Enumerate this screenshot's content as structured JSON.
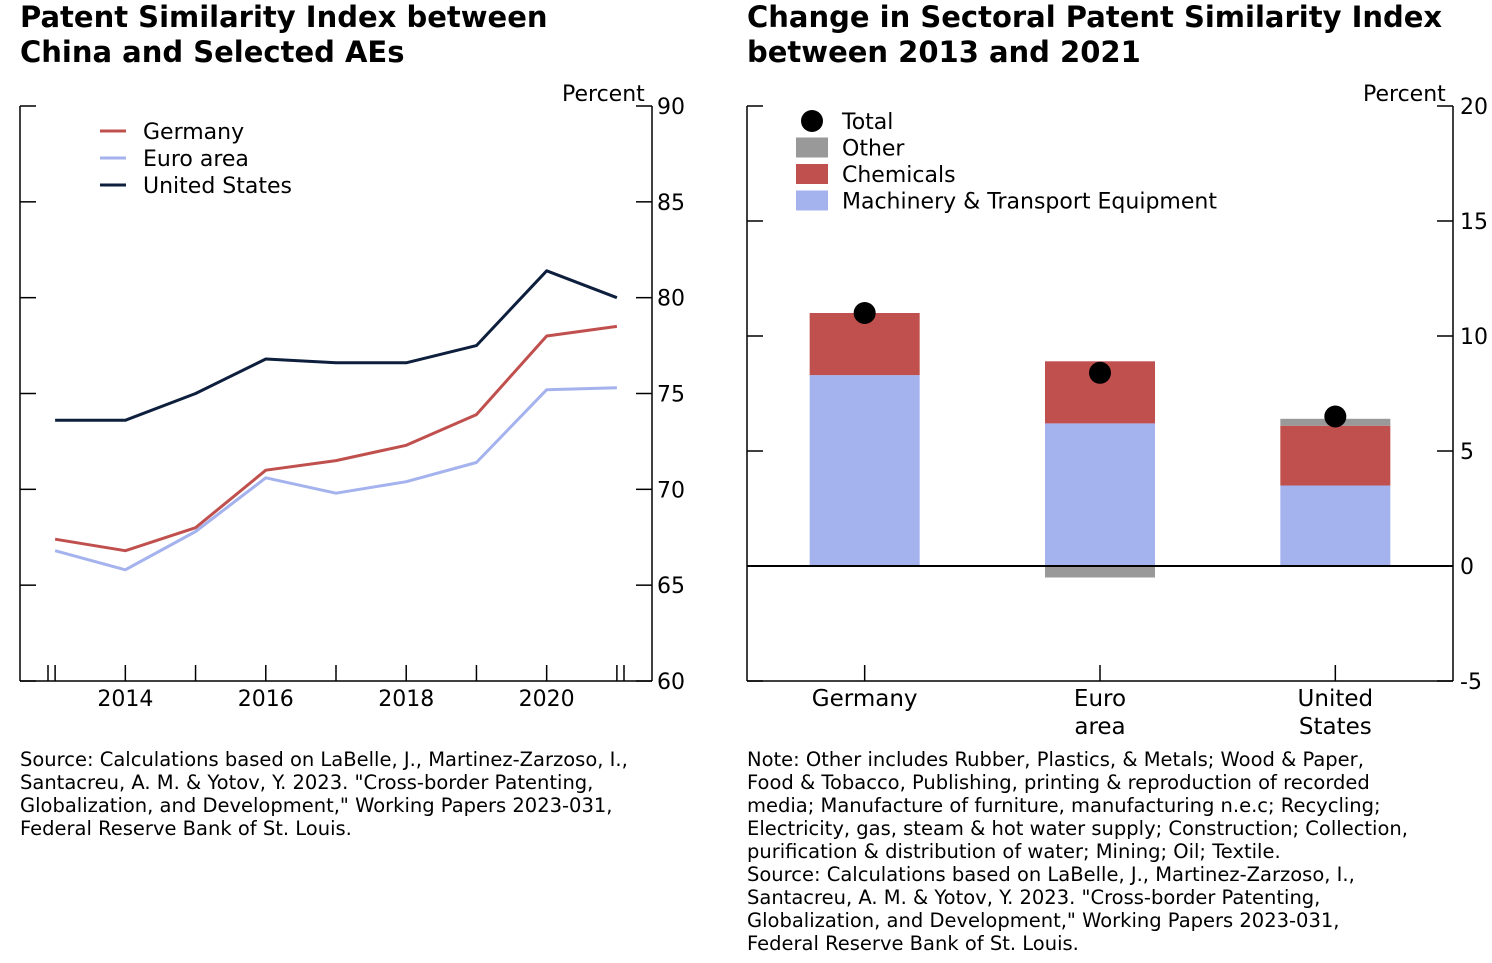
{
  "left": {
    "title": "Patent Similarity Index between\nChina and Selected AEs",
    "note": "  Source: Calculations based on LaBelle, J., Martinez-Zarzoso, I.,\nSantacreu, A. M. & Yotov, Y. 2023. \"Cross-border Patenting,\nGlobalization, and Development,\" Working Papers 2023-031,\nFederal Reserve Bank of St. Louis."
  },
  "right": {
    "title": "Change in Sectoral Patent Similarity Index\nbetween 2013 and 2021",
    "note": "  Note: Other includes Rubber, Plastics, & Metals; Wood & Paper,\nFood & Tobacco, Publishing, printing & reproduction of recorded\nmedia; Manufacture of furniture, manufacturing n.e.c;  Recycling;\nElectricity, gas, steam & hot water supply; Construction;  Collection,\npurification & distribution of water; Mining; Oil; Textile.\n  Source: Calculations based on LaBelle, J., Martinez-Zarzoso, I.,\nSantacreu, A. M. & Yotov, Y. 2023. \"Cross-border Patenting,\nGlobalization, and Development,\" Working Papers 2023-031,\nFederal Reserve Bank of St. Louis."
  },
  "chart_data": [
    {
      "type": "line",
      "title": "Patent Similarity Index between China and Selected AEs",
      "ylabel": "Percent",
      "ylim": [
        60,
        90
      ],
      "yticks": [
        60,
        65,
        70,
        75,
        80,
        85,
        90
      ],
      "x": [
        2013,
        2014,
        2015,
        2016,
        2017,
        2018,
        2019,
        2020,
        2021
      ],
      "xtick_labels": [
        "2014",
        "2016",
        "2018",
        "2020"
      ],
      "xtick_values": [
        2014,
        2016,
        2018,
        2020
      ],
      "legend_position": "top-left",
      "series": [
        {
          "name": "Germany",
          "color": "#c0504d",
          "values": [
            67.4,
            66.8,
            68.0,
            71.0,
            71.5,
            72.3,
            73.9,
            78.0,
            78.5
          ]
        },
        {
          "name": "Euro area",
          "color": "#a4b2ee",
          "values": [
            66.8,
            65.8,
            67.8,
            70.6,
            69.8,
            70.4,
            71.4,
            75.2,
            75.3
          ]
        },
        {
          "name": "United States",
          "color": "#0e1f3e",
          "values": [
            73.6,
            73.6,
            75.0,
            76.8,
            76.6,
            76.6,
            77.5,
            81.4,
            80.0
          ]
        }
      ]
    },
    {
      "type": "bar",
      "stacked": true,
      "title": "Change in Sectoral Patent Similarity Index between 2013 and 2021",
      "ylabel": "Percent",
      "ylim": [
        -5,
        20
      ],
      "yticks": [
        -5,
        0,
        5,
        10,
        15,
        20
      ],
      "categories": [
        "Germany",
        "Euro\narea",
        "United\nStates"
      ],
      "legend_position": "top-left",
      "series": [
        {
          "name": "Machinery & Transport Equipment",
          "color": "#a4b2ee",
          "values": [
            8.3,
            6.2,
            3.5
          ]
        },
        {
          "name": "Chemicals",
          "color": "#c0504d",
          "values": [
            2.7,
            2.7,
            2.6
          ]
        },
        {
          "name": "Other",
          "color": "#999999",
          "values": [
            0.0,
            -0.5,
            0.3
          ]
        }
      ],
      "totals": {
        "name": "Total",
        "color": "#000000",
        "values": [
          11.0,
          8.4,
          6.5
        ]
      }
    }
  ]
}
